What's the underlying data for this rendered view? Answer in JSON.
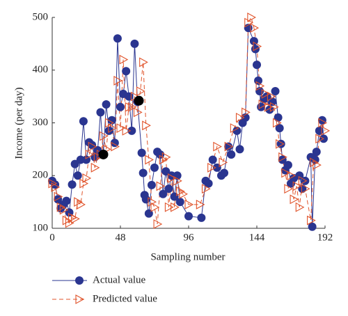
{
  "chart_data": {
    "type": "line",
    "x_label": "Sampling number",
    "y_label": "Income (per day)",
    "xlim": [
      0,
      192
    ],
    "xticks": [
      0,
      48,
      96,
      144,
      192
    ],
    "ylim": [
      100,
      500
    ],
    "yticks": [
      100,
      200,
      300,
      400,
      500
    ],
    "series": [
      {
        "name": "Actual value",
        "color": "#2a3590",
        "marker": "circle",
        "dashed": false,
        "x": [
          0,
          2,
          4,
          6,
          8,
          10,
          12,
          14,
          16,
          18,
          20,
          22,
          24,
          26,
          28,
          30,
          32,
          34,
          36,
          38,
          40,
          42,
          44,
          46,
          48,
          50,
          52,
          54,
          56,
          58,
          60,
          63,
          64,
          65,
          66,
          68,
          70,
          72,
          74,
          76,
          78,
          80,
          82,
          84,
          86,
          88,
          90,
          96,
          105,
          108,
          110,
          113,
          116,
          119,
          121,
          124,
          126,
          130,
          132,
          134,
          136,
          138,
          142,
          143,
          144,
          145,
          146,
          147,
          149,
          151,
          153,
          155,
          157,
          159,
          160,
          161,
          162,
          164,
          166,
          168,
          170,
          174,
          176,
          178,
          182,
          183,
          185,
          186,
          188,
          190,
          191
        ],
        "values": [
          190,
          183,
          155,
          138,
          145,
          152,
          130,
          183,
          222,
          200,
          230,
          303,
          230,
          263,
          258,
          235,
          248,
          320,
          240,
          335,
          285,
          305,
          262,
          460,
          330,
          355,
          398,
          350,
          285,
          450,
          340,
          243,
          205,
          163,
          155,
          128,
          182,
          215,
          245,
          240,
          165,
          208,
          175,
          200,
          160,
          200,
          150,
          123,
          120,
          190,
          185,
          230,
          215,
          200,
          205,
          255,
          240,
          285,
          250,
          300,
          310,
          480,
          455,
          440,
          410,
          380,
          360,
          330,
          345,
          350,
          325,
          340,
          360,
          310,
          290,
          260,
          230,
          210,
          220,
          185,
          195,
          200,
          175,
          190,
          235,
          103,
          230,
          245,
          285,
          305,
          270
        ]
      },
      {
        "name": "Predicted value",
        "color": "#e0532a",
        "marker": "triangle",
        "dashed": true,
        "x": [
          0,
          2,
          4,
          6,
          8,
          10,
          12,
          14,
          16,
          18,
          20,
          22,
          24,
          26,
          28,
          30,
          32,
          34,
          36,
          38,
          40,
          42,
          44,
          46,
          48,
          50,
          52,
          54,
          56,
          58,
          60,
          62,
          64,
          66,
          68,
          70,
          72,
          74,
          76,
          78,
          80,
          82,
          84,
          86,
          88,
          90,
          92,
          96,
          104,
          108,
          112,
          116,
          120,
          124,
          128,
          132,
          136,
          138,
          140,
          142,
          144,
          146,
          148,
          150,
          152,
          154,
          156,
          158,
          160,
          162,
          164,
          166,
          168,
          170,
          172,
          174,
          176,
          178,
          182,
          184,
          186,
          188,
          190,
          192
        ],
        "values": [
          185,
          178,
          160,
          140,
          135,
          115,
          110,
          120,
          118,
          150,
          145,
          185,
          195,
          240,
          255,
          215,
          235,
          240,
          275,
          250,
          300,
          290,
          255,
          380,
          290,
          420,
          285,
          330,
          330,
          350,
          320,
          360,
          415,
          295,
          230,
          150,
          140,
          108,
          180,
          230,
          235,
          140,
          195,
          140,
          190,
          170,
          165,
          145,
          145,
          175,
          215,
          255,
          225,
          255,
          290,
          310,
          320,
          490,
          500,
          480,
          445,
          370,
          335,
          355,
          330,
          350,
          330,
          300,
          260,
          235,
          205,
          175,
          200,
          155,
          180,
          140,
          190,
          175,
          115,
          225,
          220,
          270,
          300,
          285
        ]
      }
    ],
    "highlight_points": {
      "color": "#000000",
      "x": [
        36,
        61
      ],
      "values": [
        240,
        342
      ]
    }
  }
}
